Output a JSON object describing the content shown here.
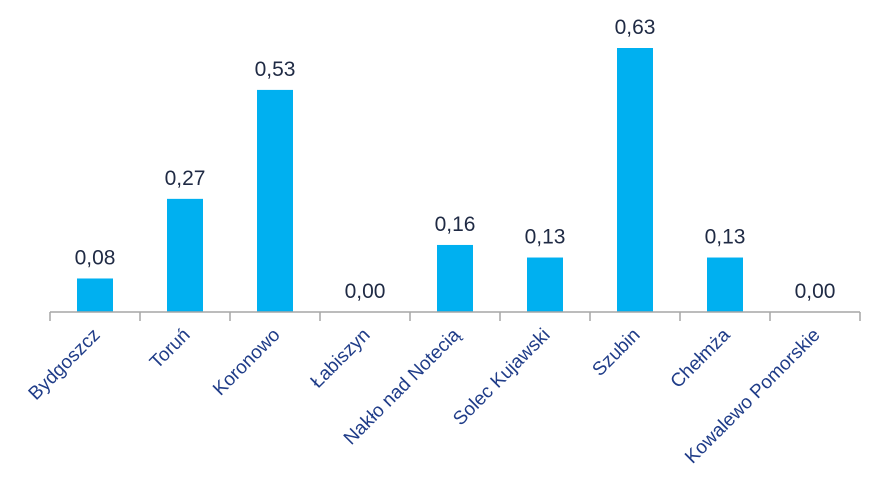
{
  "chart_data": {
    "type": "bar",
    "categories": [
      "Bydgoszcz",
      "Toruń",
      "Koronowo",
      "Łabiszyn",
      "Nakło nad Notecią",
      "Solec Kujawski",
      "Szubin",
      "Chełmża",
      "Kowalewo Pomorskie"
    ],
    "values": [
      0.08,
      0.27,
      0.53,
      0.0,
      0.16,
      0.13,
      0.63,
      0.13,
      0.0
    ],
    "value_labels": [
      "0,08",
      "0,27",
      "0,53",
      "0,00",
      "0,16",
      "0,13",
      "0,63",
      "0,13",
      "0,00"
    ],
    "title": "",
    "xlabel": "",
    "ylabel": "",
    "ylim": [
      0,
      0.63
    ],
    "grid": false,
    "legend": "none",
    "colors": {
      "bar": "#00b0f0",
      "axis": "#a6a6a6",
      "value_text": "#1f2a44",
      "category_text": "#1f3c88"
    }
  }
}
